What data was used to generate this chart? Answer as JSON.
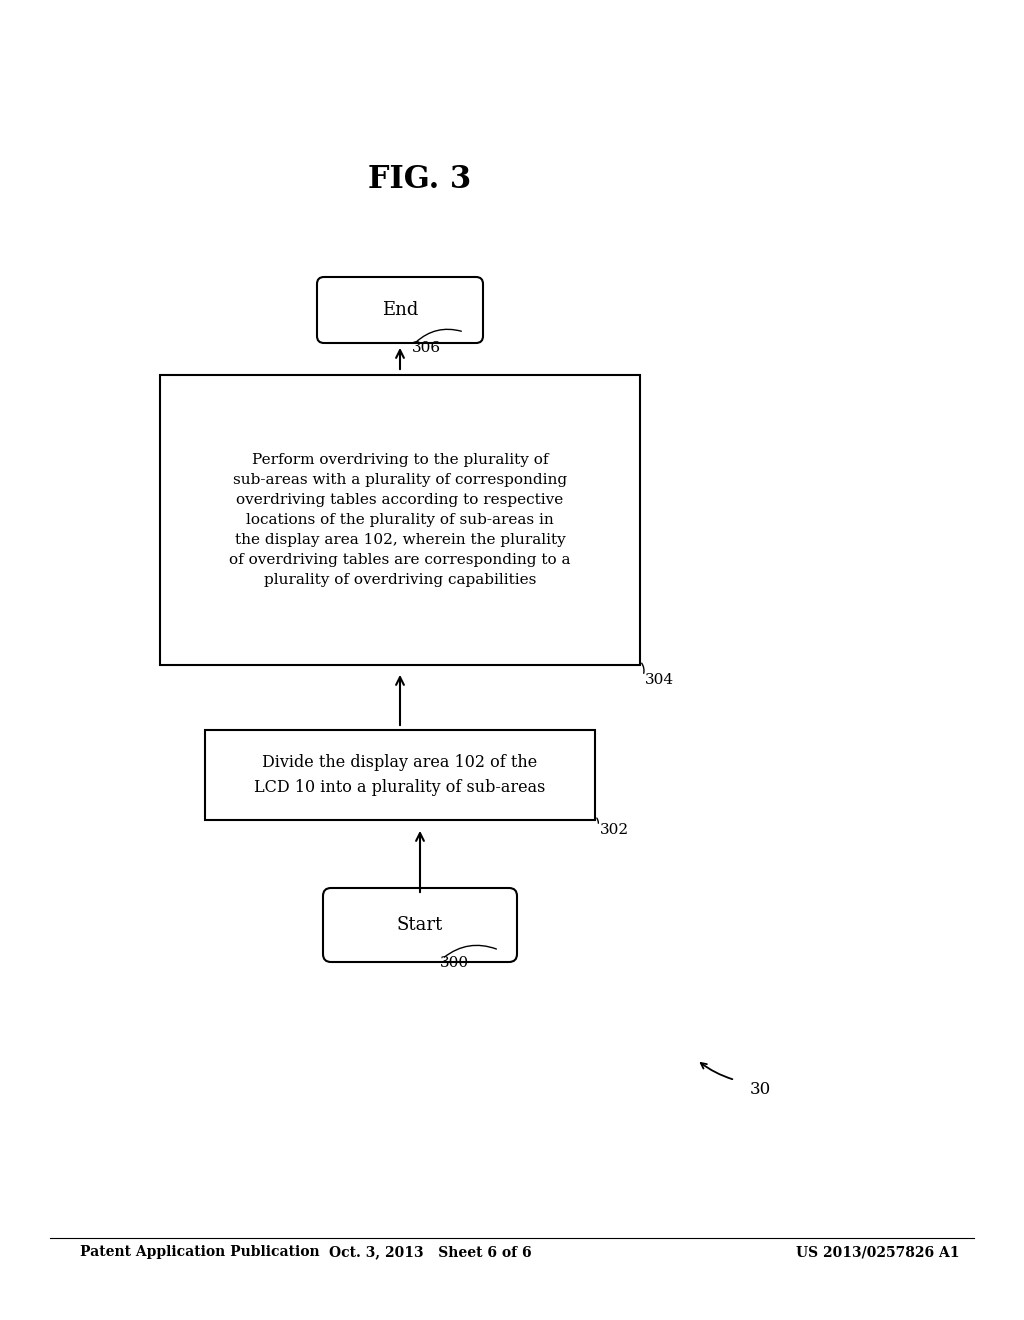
{
  "background_color": "#ffffff",
  "header_left": "Patent Application Publication",
  "header_center": "Oct. 3, 2013   Sheet 6 of 6",
  "header_right": "US 2013/0257826 A1",
  "fig_label": "FIG. 3",
  "diagram_label": "30",
  "start_label": "Start",
  "start_ref": "300",
  "box302_ref": "302",
  "box302_text": "Divide the display area 102 of the\nLCD 10 into a plurality of sub-areas",
  "box304_ref": "304",
  "box304_text": "Perform overdriving to the plurality of\nsub-areas with a plurality of corresponding\noverdriving tables according to respective\nlocations of the plurality of sub-areas in\nthe display area 102, wherein the plurality\nof overdriving tables are corresponding to a\nplurality of overdriving capabilities",
  "end_label": "End",
  "end_ref": "306"
}
